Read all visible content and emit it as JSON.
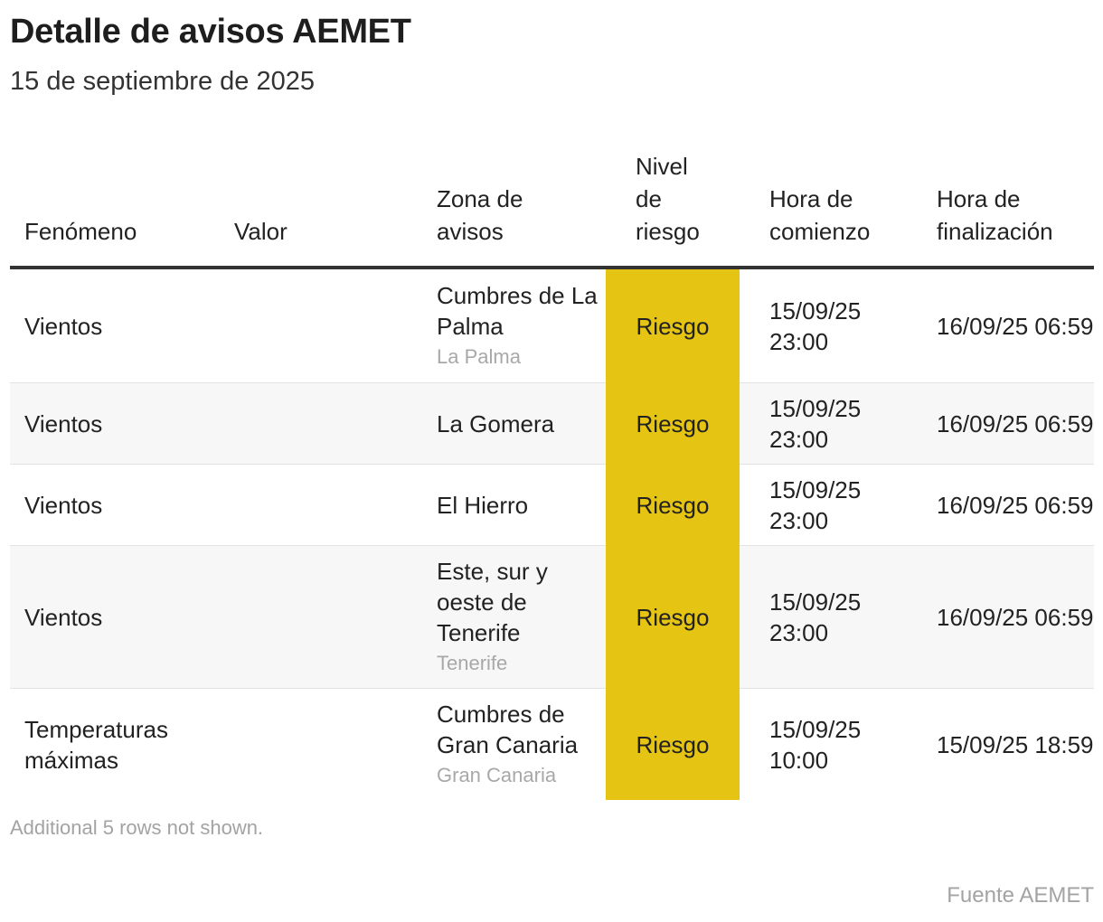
{
  "title": "Detalle de avisos AEMET",
  "subtitle": "15 de septiembre de 2025",
  "columns": {
    "fenomeno": "Fenómeno",
    "valor": "Valor",
    "zona": "Zona de avisos",
    "nivel": "Nivel de riesgo",
    "inicio": "Hora de comienzo",
    "fin": "Hora de finalización"
  },
  "colors": {
    "risk_highlight": "#e5c413",
    "alt_row": "#f7f7f7",
    "muted_text": "#a3a3a3"
  },
  "chart_data": {
    "type": "table",
    "columns": [
      "Fenómeno",
      "Valor",
      "Zona de avisos",
      "Nivel de riesgo",
      "Hora de comienzo",
      "Hora de finalización"
    ],
    "rows": [
      {
        "fenomeno": "Vientos",
        "valor": "",
        "zona": "Cumbres de La Palma",
        "region": "La Palma",
        "nivel": "Riesgo",
        "inicio": "15/09/25 23:00",
        "fin": "16/09/25 06:59"
      },
      {
        "fenomeno": "Vientos",
        "valor": "",
        "zona": "La Gomera",
        "region": "",
        "nivel": "Riesgo",
        "inicio": "15/09/25 23:00",
        "fin": "16/09/25 06:59"
      },
      {
        "fenomeno": "Vientos",
        "valor": "",
        "zona": "El Hierro",
        "region": "",
        "nivel": "Riesgo",
        "inicio": "15/09/25 23:00",
        "fin": "16/09/25 06:59"
      },
      {
        "fenomeno": "Vientos",
        "valor": "",
        "zona": "Este, sur y oeste de Tenerife",
        "region": "Tenerife",
        "nivel": "Riesgo",
        "inicio": "15/09/25 23:00",
        "fin": "16/09/25 06:59"
      },
      {
        "fenomeno": "Temperaturas máximas",
        "valor": "",
        "zona": "Cumbres de Gran Canaria",
        "region": "Gran Canaria",
        "nivel": "Riesgo",
        "inicio": "15/09/25 10:00",
        "fin": "15/09/25 18:59"
      }
    ]
  },
  "footer": {
    "note": "Additional 5 rows not shown.",
    "source": "Fuente AEMET"
  }
}
